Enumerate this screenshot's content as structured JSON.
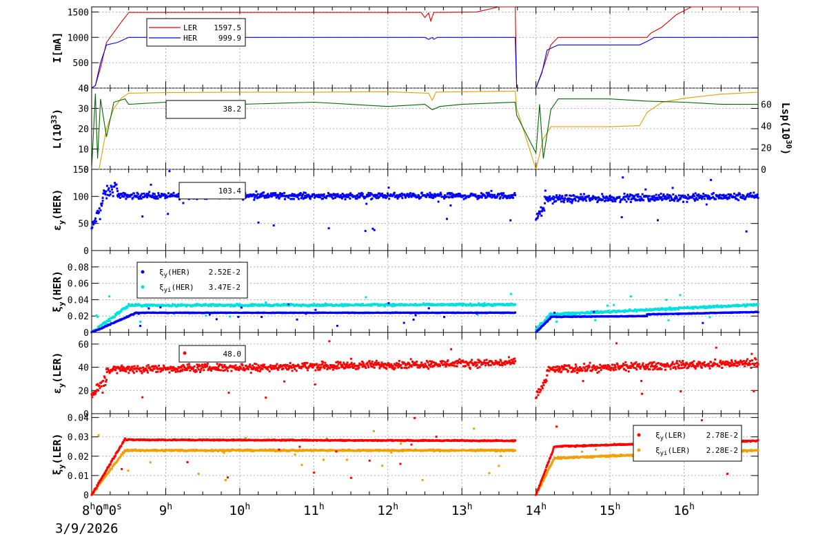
{
  "date_label": "3/9/2026",
  "chart_data": [
    {
      "type": "line",
      "ylabel": "I[mA]",
      "ylim": [
        0,
        1600
      ],
      "yticks": [
        0,
        500,
        1000,
        1500
      ],
      "x_range_hours": [
        8.0,
        17.0
      ],
      "series": [
        {
          "name": "LER",
          "value": "1597.5",
          "color": "#e00000",
          "points": [
            [
              8.0,
              0
            ],
            [
              8.05,
              50
            ],
            [
              8.12,
              400
            ],
            [
              8.2,
              900
            ],
            [
              8.3,
              1100
            ],
            [
              8.4,
              1300
            ],
            [
              8.48,
              1450
            ],
            [
              8.5,
              1490
            ],
            [
              12.45,
              1490
            ],
            [
              12.5,
              1390
            ],
            [
              12.55,
              1480
            ],
            [
              12.58,
              1320
            ],
            [
              12.62,
              1490
            ],
            [
              13.0,
              1495
            ],
            [
              13.2,
              1500
            ],
            [
              13.5,
              1600
            ],
            [
              13.72,
              1600
            ],
            [
              13.74,
              0
            ],
            [
              14.0,
              0
            ],
            [
              14.1,
              400
            ],
            [
              14.2,
              850
            ],
            [
              14.3,
              1000
            ],
            [
              15.5,
              1000
            ],
            [
              15.55,
              1080
            ],
            [
              15.7,
              1200
            ],
            [
              15.9,
              1450
            ],
            [
              16.1,
              1600
            ],
            [
              17.0,
              1600
            ]
          ]
        },
        {
          "name": "HER",
          "value": "999.9",
          "color": "#0000e0",
          "points": [
            [
              8.0,
              0
            ],
            [
              8.05,
              50
            ],
            [
              8.12,
              500
            ],
            [
              8.2,
              850
            ],
            [
              8.35,
              900
            ],
            [
              8.5,
              1000
            ],
            [
              12.5,
              1000
            ],
            [
              12.55,
              960
            ],
            [
              12.6,
              1000
            ],
            [
              12.62,
              960
            ],
            [
              12.67,
              1000
            ],
            [
              13.72,
              1000
            ],
            [
              13.74,
              0
            ],
            [
              14.0,
              0
            ],
            [
              14.08,
              300
            ],
            [
              14.15,
              750
            ],
            [
              14.3,
              850
            ],
            [
              14.5,
              850
            ],
            [
              15.4,
              850
            ],
            [
              15.5,
              920
            ],
            [
              15.6,
              1000
            ],
            [
              17.0,
              1000
            ]
          ]
        }
      ]
    },
    {
      "type": "line",
      "ylabel": "L(10³³)",
      "y2label": "Lsp(10³⁰)",
      "ylim": [
        0,
        40
      ],
      "yticks": [
        0,
        10,
        20,
        30,
        40
      ],
      "y2lim": [
        0,
        75
      ],
      "y2ticks": [
        0,
        20,
        40,
        60
      ],
      "legend_value": "38.2",
      "series": [
        {
          "name": "L",
          "color": "#e0a000",
          "axis": "left",
          "points": [
            [
              8.0,
              0
            ],
            [
              8.1,
              0
            ],
            [
              8.2,
              20
            ],
            [
              8.3,
              30
            ],
            [
              8.4,
              35
            ],
            [
              8.5,
              37.5
            ],
            [
              9.0,
              37.8
            ],
            [
              10.0,
              38.0
            ],
            [
              11.0,
              38.0
            ],
            [
              12.0,
              38.2
            ],
            [
              12.55,
              37.5
            ],
            [
              12.6,
              34
            ],
            [
              12.65,
              38
            ],
            [
              13.0,
              38.2
            ],
            [
              13.72,
              38.5
            ],
            [
              13.74,
              30
            ],
            [
              14.0,
              0
            ],
            [
              14.1,
              15
            ],
            [
              14.2,
              21
            ],
            [
              15.0,
              21
            ],
            [
              15.4,
              21.5
            ],
            [
              15.5,
              28
            ],
            [
              15.7,
              33
            ],
            [
              16.0,
              35
            ],
            [
              16.5,
              37
            ],
            [
              17.0,
              38
            ]
          ]
        },
        {
          "name": "Lsp",
          "color": "#006600",
          "axis": "right",
          "points": [
            [
              8.0,
              0
            ],
            [
              8.05,
              70
            ],
            [
              8.08,
              10
            ],
            [
              8.12,
              65
            ],
            [
              8.2,
              30
            ],
            [
              8.3,
              62
            ],
            [
              8.45,
              65
            ],
            [
              8.5,
              60
            ],
            [
              9.0,
              62
            ],
            [
              9.5,
              60
            ],
            [
              10.0,
              60
            ],
            [
              11.0,
              62
            ],
            [
              12.0,
              58
            ],
            [
              12.5,
              60
            ],
            [
              12.6,
              55
            ],
            [
              12.7,
              58
            ],
            [
              13.0,
              60
            ],
            [
              13.72,
              62
            ],
            [
              13.74,
              50
            ],
            [
              14.0,
              15
            ],
            [
              14.05,
              60
            ],
            [
              14.1,
              10
            ],
            [
              14.2,
              55
            ],
            [
              14.3,
              65
            ],
            [
              15.0,
              65
            ],
            [
              15.5,
              63
            ],
            [
              16.0,
              62
            ],
            [
              16.5,
              60
            ],
            [
              17.0,
              60
            ]
          ]
        }
      ]
    },
    {
      "type": "scatter",
      "ylabel": "εy(HER)",
      "ylim": [
        0,
        150
      ],
      "yticks": [
        0,
        50,
        100,
        150
      ],
      "legend_value": "103.4",
      "series": [
        {
          "name": "εy(HER)",
          "color": "#0000ff",
          "segments": [
            {
              "x0": 8.0,
              "x1": 8.15,
              "y0": 40,
              "y1": 90,
              "noise": 15
            },
            {
              "x0": 8.15,
              "x1": 8.35,
              "y0": 100,
              "y1": 120,
              "noise": 18
            },
            {
              "x0": 8.35,
              "x1": 13.72,
              "y0": 101,
              "y1": 101,
              "noise": 8
            },
            {
              "x0": 14.0,
              "x1": 14.12,
              "y0": 60,
              "y1": 80,
              "noise": 12
            },
            {
              "x0": 14.12,
              "x1": 17.0,
              "y0": 95,
              "y1": 100,
              "noise": 10
            }
          ]
        }
      ]
    },
    {
      "type": "scatter",
      "ylabel": "ξy(HER)",
      "ylim": [
        0,
        0.1
      ],
      "yticks": [
        0,
        0.02,
        0.04,
        0.06,
        0.08
      ],
      "legend": [
        {
          "label": "ξy(HER)",
          "value": "2.52E-2",
          "color": "#0000ff"
        },
        {
          "label": "ξyi(HER)",
          "value": "3.47E-2",
          "color": "#00e0e0"
        }
      ],
      "series": [
        {
          "name": "ξyi(HER)",
          "color": "#00e0e0",
          "segments": [
            {
              "x0": 8.0,
              "x1": 8.5,
              "y0": 0.0,
              "y1": 0.033,
              "noise": 0.003
            },
            {
              "x0": 8.5,
              "x1": 13.72,
              "y0": 0.033,
              "y1": 0.034,
              "noise": 0.002
            },
            {
              "x0": 14.0,
              "x1": 14.2,
              "y0": 0.003,
              "y1": 0.022,
              "noise": 0.003
            },
            {
              "x0": 14.2,
              "x1": 17.0,
              "y0": 0.022,
              "y1": 0.034,
              "noise": 0.002
            }
          ]
        },
        {
          "name": "ξy(HER)",
          "color": "#0000ff",
          "segments": [
            {
              "x0": 8.0,
              "x1": 8.6,
              "y0": 0.0,
              "y1": 0.024,
              "noise": 0.001
            },
            {
              "x0": 8.6,
              "x1": 13.72,
              "y0": 0.024,
              "y1": 0.024,
              "noise": 0.0005
            },
            {
              "x0": 14.0,
              "x1": 14.2,
              "y0": 0.0,
              "y1": 0.018,
              "noise": 0.001
            },
            {
              "x0": 14.2,
              "x1": 15.5,
              "y0": 0.019,
              "y1": 0.02,
              "noise": 0.0006
            },
            {
              "x0": 15.5,
              "x1": 17.0,
              "y0": 0.022,
              "y1": 0.025,
              "noise": 0.0006
            }
          ]
        }
      ]
    },
    {
      "type": "scatter",
      "ylabel": "εy(LER)",
      "ylim": [
        0,
        70
      ],
      "yticks": [
        0,
        20,
        40,
        60
      ],
      "legend_value": "48.0",
      "series": [
        {
          "name": "εy(LER)",
          "color": "#ff0000",
          "segments": [
            {
              "x0": 8.0,
              "x1": 8.2,
              "y0": 15,
              "y1": 30,
              "noise": 8
            },
            {
              "x0": 8.2,
              "x1": 13.72,
              "y0": 38,
              "y1": 44,
              "noise": 5
            },
            {
              "x0": 14.0,
              "x1": 14.15,
              "y0": 15,
              "y1": 30,
              "noise": 6
            },
            {
              "x0": 14.15,
              "x1": 17.0,
              "y0": 38,
              "y1": 44,
              "noise": 5
            }
          ]
        }
      ]
    },
    {
      "type": "scatter",
      "ylabel": "ξy(LER)",
      "ylim": [
        0,
        0.042
      ],
      "yticks": [
        0,
        0.01,
        0.02,
        0.03,
        0.04
      ],
      "legend": [
        {
          "label": "ξy(LER)",
          "value": "2.78E-2",
          "color": "#ff0000"
        },
        {
          "label": "ξyi(LER)",
          "value": "2.28E-2",
          "color": "#f0a000"
        }
      ],
      "series": [
        {
          "name": "ξyi(LER)",
          "color": "#f0a000",
          "segments": [
            {
              "x0": 8.0,
              "x1": 8.45,
              "y0": 0.0,
              "y1": 0.023,
              "noise": 0.0008
            },
            {
              "x0": 8.45,
              "x1": 13.72,
              "y0": 0.023,
              "y1": 0.023,
              "noise": 0.0006
            },
            {
              "x0": 14.0,
              "x1": 14.25,
              "y0": 0.0,
              "y1": 0.019,
              "noise": 0.0008
            },
            {
              "x0": 14.25,
              "x1": 17.0,
              "y0": 0.019,
              "y1": 0.023,
              "noise": 0.0007
            }
          ]
        },
        {
          "name": "ξy(LER)",
          "color": "#ff0000",
          "segments": [
            {
              "x0": 8.0,
              "x1": 8.45,
              "y0": 0.0,
              "y1": 0.029,
              "noise": 0.0007
            },
            {
              "x0": 8.45,
              "x1": 13.72,
              "y0": 0.0285,
              "y1": 0.028,
              "noise": 0.0004
            },
            {
              "x0": 14.0,
              "x1": 14.25,
              "y0": 0.0,
              "y1": 0.025,
              "noise": 0.0007
            },
            {
              "x0": 14.25,
              "x1": 17.0,
              "y0": 0.025,
              "y1": 0.028,
              "noise": 0.0005
            }
          ]
        }
      ]
    }
  ],
  "x_axis": {
    "range_hours": [
      8.0,
      17.0
    ],
    "ticks": [
      {
        "h": 8,
        "label": "8",
        "sup": "h",
        "label2": "0",
        "sup2": "m",
        "label3": "0",
        "sup3": "s"
      },
      {
        "h": 9,
        "label": "9",
        "sup": "h"
      },
      {
        "h": 10,
        "label": "10",
        "sup": "h"
      },
      {
        "h": 11,
        "label": "11",
        "sup": "h"
      },
      {
        "h": 12,
        "label": "12",
        "sup": "h"
      },
      {
        "h": 13,
        "label": "13",
        "sup": "h"
      },
      {
        "h": 14,
        "label": "14",
        "sup": "h"
      },
      {
        "h": 15,
        "label": "15",
        "sup": "h"
      },
      {
        "h": 16,
        "label": "16",
        "sup": "h"
      }
    ]
  }
}
